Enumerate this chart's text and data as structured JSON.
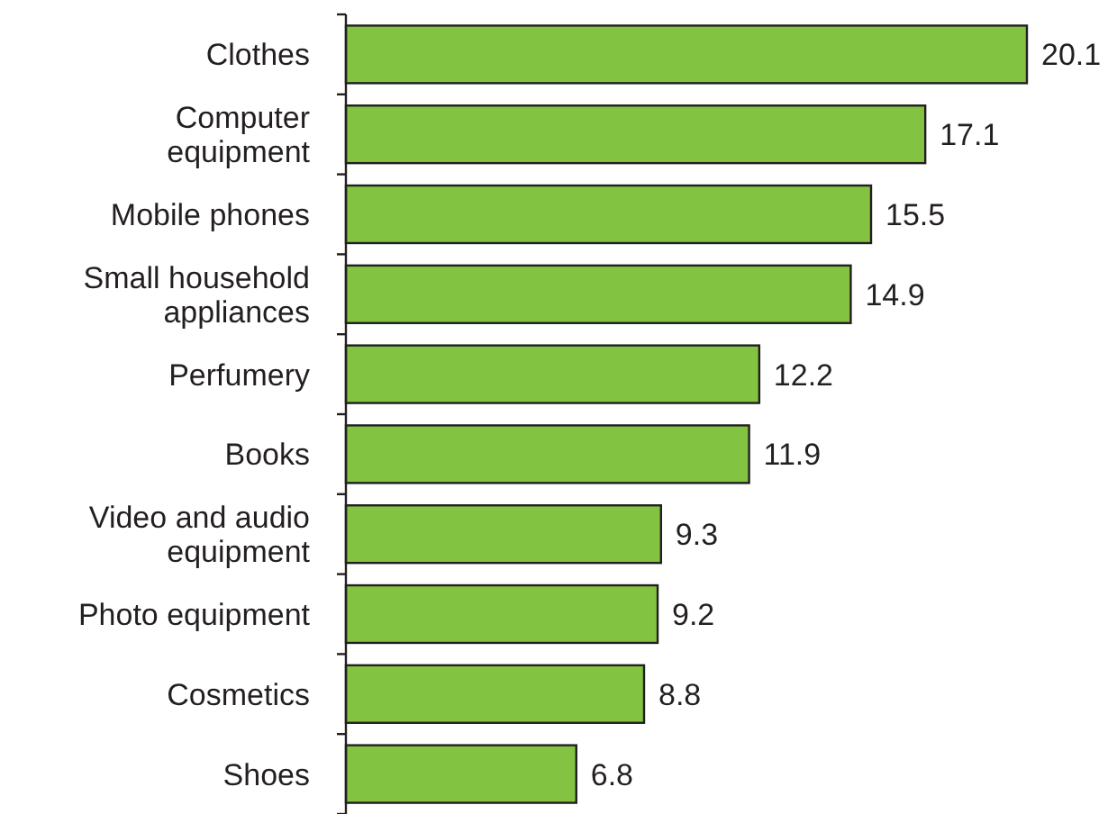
{
  "chart_data": {
    "type": "bar",
    "orientation": "horizontal",
    "categories": [
      "Clothes",
      "Computer equipment",
      "Mobile phones",
      "Small household appliances",
      "Perfumery",
      "Books",
      "Video and audio equipment",
      "Photo equipment",
      "Cosmetics",
      "Shoes"
    ],
    "values": [
      20.1,
      17.1,
      15.5,
      14.9,
      12.2,
      11.9,
      9.3,
      9.2,
      8.8,
      6.8
    ],
    "color": "#82c341",
    "data_labels": true
  }
}
